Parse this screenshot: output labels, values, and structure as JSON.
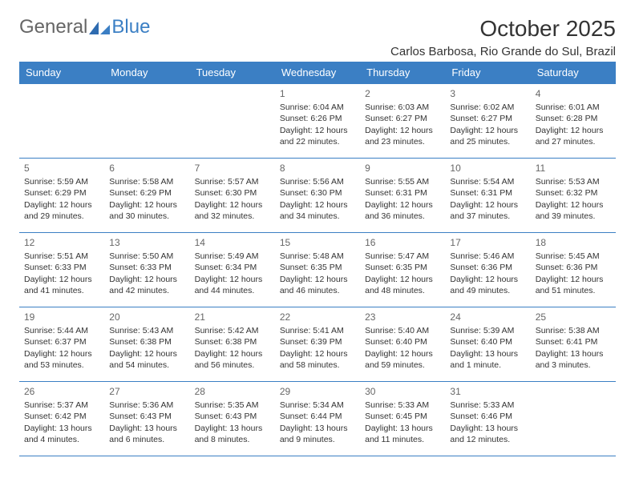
{
  "logo": {
    "general": "General",
    "blue": "Blue"
  },
  "header": {
    "title": "October 2025",
    "location": "Carlos Barbosa, Rio Grande do Sul, Brazil"
  },
  "colors": {
    "header_bg": "#3b7fc4",
    "header_text": "#ffffff",
    "border": "#3b7fc4",
    "text": "#333333",
    "daynum": "#666666",
    "background": "#ffffff"
  },
  "dayNames": [
    "Sunday",
    "Monday",
    "Tuesday",
    "Wednesday",
    "Thursday",
    "Friday",
    "Saturday"
  ],
  "weeks": [
    [
      null,
      null,
      null,
      {
        "n": "1",
        "sr": "Sunrise: 6:04 AM",
        "ss": "Sunset: 6:26 PM",
        "dl": "Daylight: 12 hours and 22 minutes."
      },
      {
        "n": "2",
        "sr": "Sunrise: 6:03 AM",
        "ss": "Sunset: 6:27 PM",
        "dl": "Daylight: 12 hours and 23 minutes."
      },
      {
        "n": "3",
        "sr": "Sunrise: 6:02 AM",
        "ss": "Sunset: 6:27 PM",
        "dl": "Daylight: 12 hours and 25 minutes."
      },
      {
        "n": "4",
        "sr": "Sunrise: 6:01 AM",
        "ss": "Sunset: 6:28 PM",
        "dl": "Daylight: 12 hours and 27 minutes."
      }
    ],
    [
      {
        "n": "5",
        "sr": "Sunrise: 5:59 AM",
        "ss": "Sunset: 6:29 PM",
        "dl": "Daylight: 12 hours and 29 minutes."
      },
      {
        "n": "6",
        "sr": "Sunrise: 5:58 AM",
        "ss": "Sunset: 6:29 PM",
        "dl": "Daylight: 12 hours and 30 minutes."
      },
      {
        "n": "7",
        "sr": "Sunrise: 5:57 AM",
        "ss": "Sunset: 6:30 PM",
        "dl": "Daylight: 12 hours and 32 minutes."
      },
      {
        "n": "8",
        "sr": "Sunrise: 5:56 AM",
        "ss": "Sunset: 6:30 PM",
        "dl": "Daylight: 12 hours and 34 minutes."
      },
      {
        "n": "9",
        "sr": "Sunrise: 5:55 AM",
        "ss": "Sunset: 6:31 PM",
        "dl": "Daylight: 12 hours and 36 minutes."
      },
      {
        "n": "10",
        "sr": "Sunrise: 5:54 AM",
        "ss": "Sunset: 6:31 PM",
        "dl": "Daylight: 12 hours and 37 minutes."
      },
      {
        "n": "11",
        "sr": "Sunrise: 5:53 AM",
        "ss": "Sunset: 6:32 PM",
        "dl": "Daylight: 12 hours and 39 minutes."
      }
    ],
    [
      {
        "n": "12",
        "sr": "Sunrise: 5:51 AM",
        "ss": "Sunset: 6:33 PM",
        "dl": "Daylight: 12 hours and 41 minutes."
      },
      {
        "n": "13",
        "sr": "Sunrise: 5:50 AM",
        "ss": "Sunset: 6:33 PM",
        "dl": "Daylight: 12 hours and 42 minutes."
      },
      {
        "n": "14",
        "sr": "Sunrise: 5:49 AM",
        "ss": "Sunset: 6:34 PM",
        "dl": "Daylight: 12 hours and 44 minutes."
      },
      {
        "n": "15",
        "sr": "Sunrise: 5:48 AM",
        "ss": "Sunset: 6:35 PM",
        "dl": "Daylight: 12 hours and 46 minutes."
      },
      {
        "n": "16",
        "sr": "Sunrise: 5:47 AM",
        "ss": "Sunset: 6:35 PM",
        "dl": "Daylight: 12 hours and 48 minutes."
      },
      {
        "n": "17",
        "sr": "Sunrise: 5:46 AM",
        "ss": "Sunset: 6:36 PM",
        "dl": "Daylight: 12 hours and 49 minutes."
      },
      {
        "n": "18",
        "sr": "Sunrise: 5:45 AM",
        "ss": "Sunset: 6:36 PM",
        "dl": "Daylight: 12 hours and 51 minutes."
      }
    ],
    [
      {
        "n": "19",
        "sr": "Sunrise: 5:44 AM",
        "ss": "Sunset: 6:37 PM",
        "dl": "Daylight: 12 hours and 53 minutes."
      },
      {
        "n": "20",
        "sr": "Sunrise: 5:43 AM",
        "ss": "Sunset: 6:38 PM",
        "dl": "Daylight: 12 hours and 54 minutes."
      },
      {
        "n": "21",
        "sr": "Sunrise: 5:42 AM",
        "ss": "Sunset: 6:38 PM",
        "dl": "Daylight: 12 hours and 56 minutes."
      },
      {
        "n": "22",
        "sr": "Sunrise: 5:41 AM",
        "ss": "Sunset: 6:39 PM",
        "dl": "Daylight: 12 hours and 58 minutes."
      },
      {
        "n": "23",
        "sr": "Sunrise: 5:40 AM",
        "ss": "Sunset: 6:40 PM",
        "dl": "Daylight: 12 hours and 59 minutes."
      },
      {
        "n": "24",
        "sr": "Sunrise: 5:39 AM",
        "ss": "Sunset: 6:40 PM",
        "dl": "Daylight: 13 hours and 1 minute."
      },
      {
        "n": "25",
        "sr": "Sunrise: 5:38 AM",
        "ss": "Sunset: 6:41 PM",
        "dl": "Daylight: 13 hours and 3 minutes."
      }
    ],
    [
      {
        "n": "26",
        "sr": "Sunrise: 5:37 AM",
        "ss": "Sunset: 6:42 PM",
        "dl": "Daylight: 13 hours and 4 minutes."
      },
      {
        "n": "27",
        "sr": "Sunrise: 5:36 AM",
        "ss": "Sunset: 6:43 PM",
        "dl": "Daylight: 13 hours and 6 minutes."
      },
      {
        "n": "28",
        "sr": "Sunrise: 5:35 AM",
        "ss": "Sunset: 6:43 PM",
        "dl": "Daylight: 13 hours and 8 minutes."
      },
      {
        "n": "29",
        "sr": "Sunrise: 5:34 AM",
        "ss": "Sunset: 6:44 PM",
        "dl": "Daylight: 13 hours and 9 minutes."
      },
      {
        "n": "30",
        "sr": "Sunrise: 5:33 AM",
        "ss": "Sunset: 6:45 PM",
        "dl": "Daylight: 13 hours and 11 minutes."
      },
      {
        "n": "31",
        "sr": "Sunrise: 5:33 AM",
        "ss": "Sunset: 6:46 PM",
        "dl": "Daylight: 13 hours and 12 minutes."
      },
      null
    ]
  ]
}
